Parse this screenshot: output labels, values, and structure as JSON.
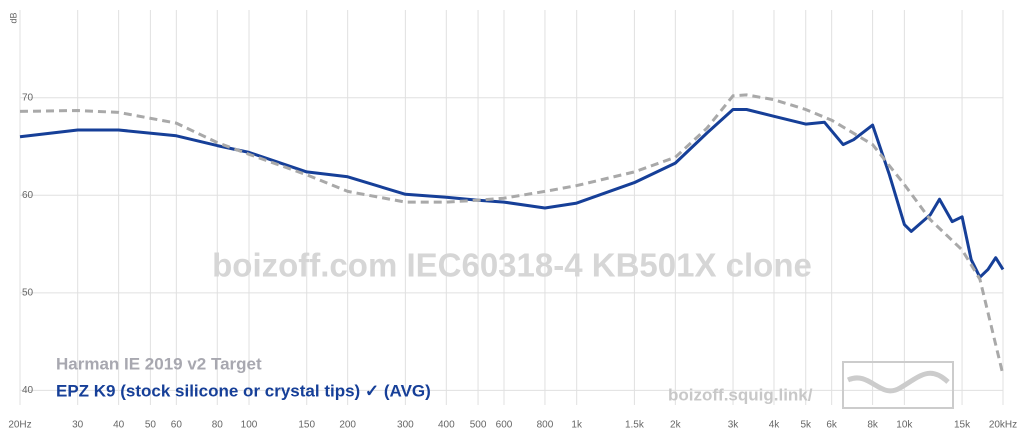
{
  "chart_data": {
    "type": "line",
    "xscale": "log",
    "grid": true,
    "y_label": "dB",
    "watermark": "boizoff.com IEC60318-4 KB501X clone",
    "site": "boizoff.squig.link/",
    "xlim": [
      20,
      20000
    ],
    "ylim": [
      38.5,
      79
    ],
    "xticks": [
      {
        "value": 20,
        "label": "20Hz"
      },
      30,
      40,
      50,
      60,
      80,
      100,
      150,
      200,
      300,
      400,
      500,
      600,
      800,
      {
        "value": 1000,
        "label": "1k"
      },
      {
        "value": 1500,
        "label": "1.5k"
      },
      {
        "value": 2000,
        "label": "2k"
      },
      {
        "value": 3000,
        "label": "3k"
      },
      {
        "value": 4000,
        "label": "4k"
      },
      {
        "value": 5000,
        "label": "5k"
      },
      {
        "value": 6000,
        "label": "6k"
      },
      {
        "value": 8000,
        "label": "8k"
      },
      {
        "value": 10000,
        "label": "10k"
      },
      {
        "value": 15000,
        "label": "15k"
      },
      {
        "value": 20000,
        "label": "20kHz"
      }
    ],
    "yticks": [
      40,
      50,
      60,
      70
    ],
    "series": [
      {
        "name": "Harman IE 2019 v2 Target",
        "color": "#a9a9a9",
        "style": "dashed",
        "x": [
          20,
          30,
          40,
          60,
          80,
          100,
          150,
          200,
          300,
          400,
          500,
          600,
          800,
          1000,
          1500,
          2000,
          2500,
          3000,
          3300,
          4000,
          5000,
          6000,
          8000,
          10000,
          12000,
          15000,
          17000,
          20000
        ],
        "values": [
          68.6,
          68.7,
          68.5,
          67.4,
          65.4,
          64.2,
          62.1,
          60.4,
          59.3,
          59.3,
          59.5,
          59.7,
          60.4,
          61.0,
          62.4,
          63.9,
          66.9,
          70.2,
          70.3,
          69.8,
          68.8,
          67.7,
          65.2,
          61.1,
          57.5,
          54.4,
          51.4,
          41.6
        ]
      },
      {
        "name": "EPZ K9 (stock silicone or crystal tips) ✓ (AVG)",
        "color": "#163f98",
        "style": "solid",
        "x": [
          20,
          30,
          40,
          60,
          80,
          100,
          150,
          200,
          300,
          400,
          500,
          600,
          800,
          1000,
          1500,
          2000,
          2500,
          3000,
          3300,
          4000,
          5000,
          5700,
          6500,
          7000,
          8000,
          9000,
          10000,
          10500,
          12000,
          12800,
          14000,
          15000,
          16000,
          17000,
          18000,
          19000,
          20000
        ],
        "values": [
          66.0,
          66.7,
          66.7,
          66.1,
          65.1,
          64.4,
          62.4,
          61.9,
          60.1,
          59.8,
          59.5,
          59.3,
          58.7,
          59.2,
          61.3,
          63.3,
          66.4,
          68.8,
          68.8,
          68.1,
          67.3,
          67.5,
          65.2,
          65.7,
          67.2,
          62.1,
          57.0,
          56.3,
          58.0,
          59.6,
          57.3,
          57.8,
          53.4,
          51.6,
          52.4,
          53.6,
          52.4
        ]
      }
    ]
  }
}
